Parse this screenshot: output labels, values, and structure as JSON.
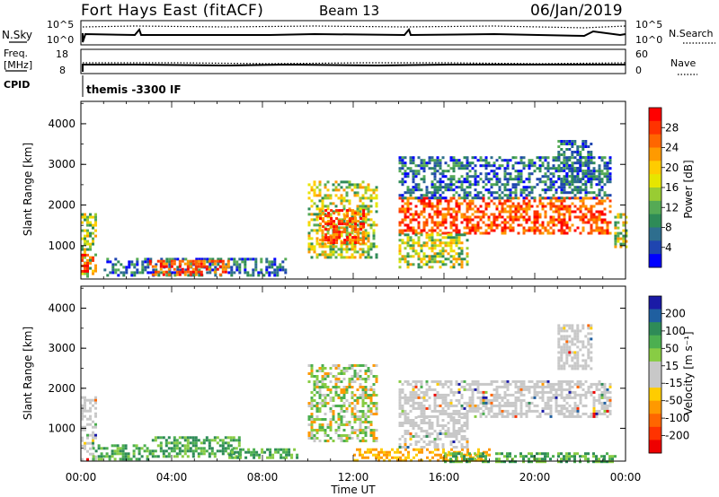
{
  "header": {
    "station": "Fort Hays East (fitACF)",
    "beam": "Beam 13",
    "date": "06/Jan/2019"
  },
  "top_panels": {
    "nsky_label": "N.Sky",
    "nsearch_label": "N.Search",
    "nsky_ticks": [
      "10^5",
      "10^0"
    ],
    "nsearch_ticks": [
      "10^5",
      "10^0"
    ],
    "freq_label_line1": "Freq.",
    "freq_label_line2": "[MHz]",
    "freq_ticks": [
      "18",
      "8"
    ],
    "nave_label": "Nave",
    "nave_ticks": [
      "60",
      "0"
    ],
    "cpid_label": "CPID",
    "cpid_text": "themis -3300 IF"
  },
  "colorbars": {
    "power": {
      "label": "Power [dB]",
      "ticks": [
        "28",
        "24",
        "20",
        "16",
        "12",
        "8",
        "4"
      ],
      "colors": [
        "#ff0000",
        "#ff3300",
        "#ff6600",
        "#ff9a00",
        "#ffcc00",
        "#e6e600",
        "#99cc33",
        "#55aa55",
        "#2e8b57",
        "#2e6e8e",
        "#1f45b0",
        "#0000ff"
      ]
    },
    "velocity": {
      "label": "Velocity [m s⁻¹]",
      "ticks": [
        "200",
        "100",
        "50",
        "15",
        "-15",
        "-50",
        "-100",
        "-200"
      ],
      "colors": [
        "#1a1aa6",
        "#1f5fa0",
        "#2e8b57",
        "#4caf50",
        "#88cc44",
        "#c8c8c8",
        "#c8c8c8",
        "#ffcc00",
        "#ff9900",
        "#ff6600",
        "#ff3300",
        "#ee0000"
      ]
    }
  },
  "chart_data": [
    {
      "type": "heatmap",
      "title": "Power",
      "ylabel": "Slant Range [km]",
      "yticks": [
        "1000",
        "2000",
        "3000",
        "4000"
      ],
      "ylim": [
        180,
        4550
      ],
      "xlim": [
        0,
        24
      ],
      "colorbar": "Power [dB]",
      "bands": [
        {
          "x0": 0.0,
          "x1": 0.6,
          "r0": 250,
          "r1": 1800,
          "level": "mid"
        },
        {
          "x0": 0.0,
          "x1": 0.5,
          "r0": 400,
          "r1": 800,
          "level": "high"
        },
        {
          "x0": 1.0,
          "x1": 9.0,
          "r0": 250,
          "r1": 700,
          "level": "low"
        },
        {
          "x0": 3.0,
          "x1": 6.5,
          "r0": 300,
          "r1": 650,
          "level": "high"
        },
        {
          "x0": 10.0,
          "x1": 13.0,
          "r0": 700,
          "r1": 2600,
          "level": "mid"
        },
        {
          "x0": 10.5,
          "x1": 12.5,
          "r0": 1100,
          "r1": 1900,
          "level": "high"
        },
        {
          "x0": 14.0,
          "x1": 23.3,
          "r0": 1300,
          "r1": 2200,
          "level": "high"
        },
        {
          "x0": 14.0,
          "x1": 23.3,
          "r0": 2200,
          "r1": 3200,
          "level": "low"
        },
        {
          "x0": 14.0,
          "x1": 17.0,
          "r0": 500,
          "r1": 1300,
          "level": "mid"
        },
        {
          "x0": 21.0,
          "x1": 22.5,
          "r0": 2500,
          "r1": 3600,
          "level": "low"
        },
        {
          "x0": 23.5,
          "x1": 24.0,
          "r0": 1000,
          "r1": 1800,
          "level": "mid"
        }
      ]
    },
    {
      "type": "heatmap",
      "title": "Velocity",
      "xlabel": "Time UT",
      "ylabel": "Slant Range [km]",
      "yticks": [
        "1000",
        "2000",
        "3000",
        "4000"
      ],
      "xticks": [
        "00:00",
        "04:00",
        "08:00",
        "12:00",
        "16:00",
        "20:00",
        "00:00"
      ],
      "ylim": [
        180,
        4550
      ],
      "xlim": [
        0,
        24
      ],
      "colorbar": "Velocity [m s⁻¹]",
      "bands": [
        {
          "x0": 0.0,
          "x1": 0.6,
          "r0": 250,
          "r1": 1800,
          "level": "gray"
        },
        {
          "x0": 0.5,
          "x1": 3.0,
          "r0": 250,
          "r1": 600,
          "level": "green"
        },
        {
          "x0": 3.0,
          "x1": 7.0,
          "r0": 300,
          "r1": 800,
          "level": "green"
        },
        {
          "x0": 6.5,
          "x1": 9.5,
          "r0": 250,
          "r1": 500,
          "level": "green"
        },
        {
          "x0": 10.0,
          "x1": 13.0,
          "r0": 700,
          "r1": 2600,
          "level": "mixed"
        },
        {
          "x0": 12.0,
          "x1": 18.0,
          "r0": 200,
          "r1": 500,
          "level": "orange"
        },
        {
          "x0": 14.0,
          "x1": 23.3,
          "r0": 1300,
          "r1": 2200,
          "level": "gray"
        },
        {
          "x0": 14.0,
          "x1": 17.0,
          "r0": 500,
          "r1": 1300,
          "level": "gray"
        },
        {
          "x0": 21.0,
          "x1": 22.5,
          "r0": 2500,
          "r1": 3600,
          "level": "gray"
        },
        {
          "x0": 16.0,
          "x1": 23.5,
          "r0": 180,
          "r1": 400,
          "level": "green"
        }
      ]
    }
  ]
}
